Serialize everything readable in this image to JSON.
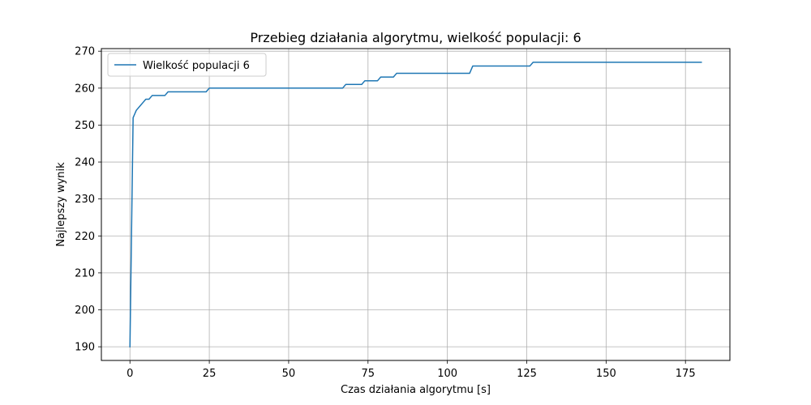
{
  "chart_data": {
    "type": "line",
    "title": "Przebieg działania algorytmu, wielkość populacji: 6",
    "xlabel": "Czas działania algorytmu [s]",
    "ylabel": "Najlepszy wynik",
    "xlim": [
      -9,
      189
    ],
    "ylim": [
      186.3,
      270.7
    ],
    "xticks": [
      0,
      25,
      50,
      75,
      100,
      125,
      150,
      175
    ],
    "yticks": [
      190,
      200,
      210,
      220,
      230,
      240,
      250,
      260,
      270
    ],
    "xtick_labels": [
      "0",
      "25",
      "50",
      "75",
      "100",
      "125",
      "150",
      "175"
    ],
    "ytick_labels": [
      "190",
      "200",
      "210",
      "220",
      "230",
      "240",
      "250",
      "260",
      "270"
    ],
    "grid": true,
    "legend_position": "upper-left",
    "series": [
      {
        "name": "Wielkość populacji 6",
        "color": "#1f77b4",
        "x": [
          0,
          1,
          1.5,
          2,
          3,
          4,
          5,
          6,
          7,
          11,
          12,
          24,
          25,
          67,
          68,
          73,
          74,
          78,
          79,
          83,
          84,
          107,
          108,
          126,
          127,
          180
        ],
        "y": [
          190,
          252,
          253,
          254,
          255,
          256,
          257,
          257,
          258,
          258,
          259,
          259,
          260,
          260,
          261,
          261,
          262,
          262,
          263,
          263,
          264,
          264,
          266,
          266,
          267,
          267
        ]
      }
    ]
  }
}
